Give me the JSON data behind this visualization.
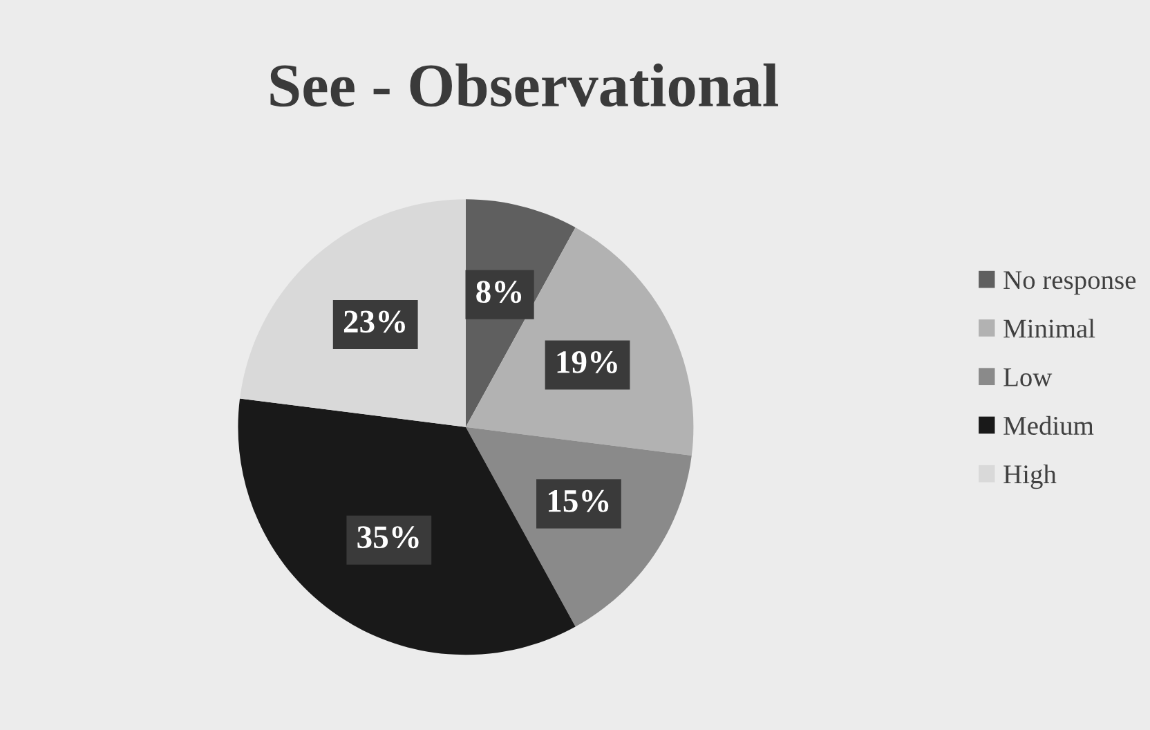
{
  "chart_data": {
    "type": "pie",
    "title": "See - Observational",
    "categories": [
      "No response",
      "Minimal",
      "Low",
      "Medium",
      "High"
    ],
    "values": [
      8,
      19,
      15,
      35,
      23
    ],
    "colors": [
      "#5f5f5f",
      "#b2b2b2",
      "#8a8a8a",
      "#191919",
      "#d9d9d9"
    ],
    "value_labels": [
      "8%",
      "19%",
      "15%",
      "35%",
      "23%"
    ],
    "legend": "right"
  }
}
